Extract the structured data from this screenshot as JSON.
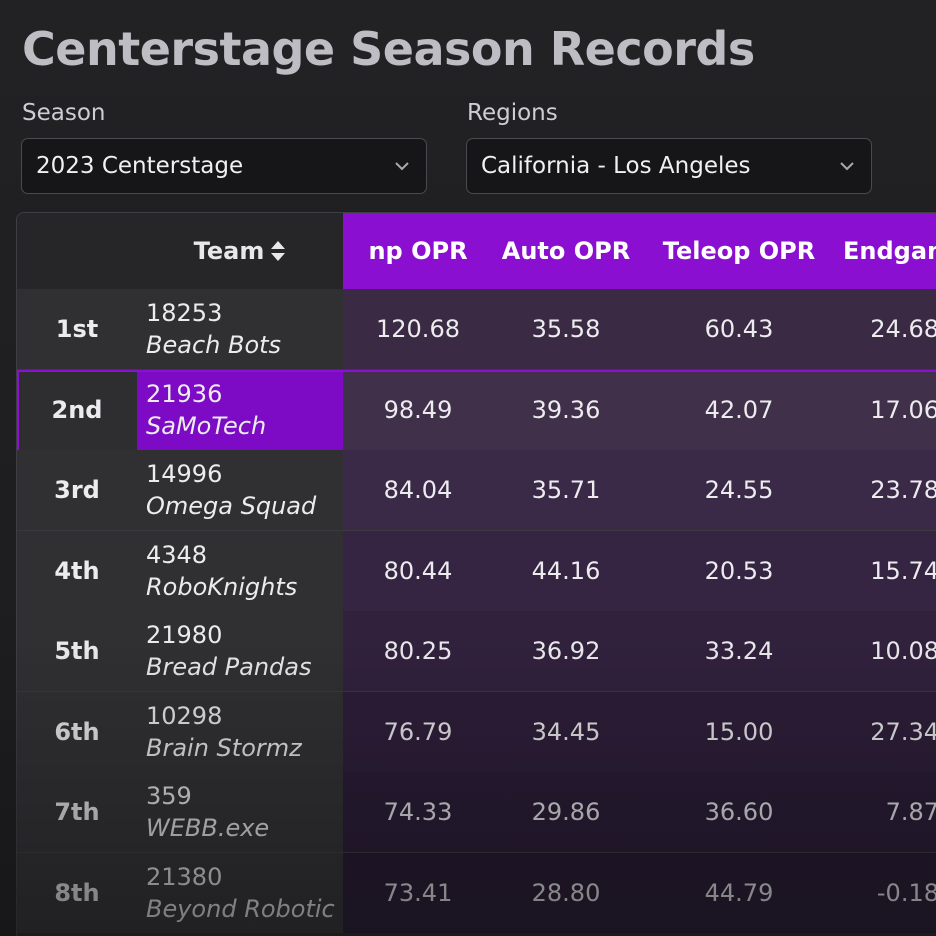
{
  "page": {
    "title": "Centerstage Season Records"
  },
  "filters": {
    "season": {
      "label": "Season",
      "value": "2023 Centerstage"
    },
    "regions": {
      "label": "Regions",
      "value": "California - Los Angeles"
    }
  },
  "table": {
    "headers": {
      "team": "Team",
      "np_opr": "np OPR",
      "auto_opr": "Auto OPR",
      "teleop_opr": "Teleop OPR",
      "endgame_opr": "Endgam"
    },
    "rows": [
      {
        "rank": "1st",
        "number": "18253",
        "name": "Beach Bots",
        "np": "120.68",
        "auto": "35.58",
        "teleop": "60.43",
        "endgame": "24.68"
      },
      {
        "rank": "2nd",
        "number": "21936",
        "name": "SaMoTech",
        "np": "98.49",
        "auto": "39.36",
        "teleop": "42.07",
        "endgame": "17.06"
      },
      {
        "rank": "3rd",
        "number": "14996",
        "name": "Omega Squad",
        "np": "84.04",
        "auto": "35.71",
        "teleop": "24.55",
        "endgame": "23.78"
      },
      {
        "rank": "4th",
        "number": "4348",
        "name": "RoboKnights",
        "np": "80.44",
        "auto": "44.16",
        "teleop": "20.53",
        "endgame": "15.74"
      },
      {
        "rank": "5th",
        "number": "21980",
        "name": "Bread Pandas",
        "np": "80.25",
        "auto": "36.92",
        "teleop": "33.24",
        "endgame": "10.08"
      },
      {
        "rank": "6th",
        "number": "10298",
        "name": "Brain Stormz",
        "np": "76.79",
        "auto": "34.45",
        "teleop": "15.00",
        "endgame": "27.34"
      },
      {
        "rank": "7th",
        "number": "359",
        "name": "WEBB.exe",
        "np": "74.33",
        "auto": "29.86",
        "teleop": "36.60",
        "endgame": "7.87"
      },
      {
        "rank": "8th",
        "number": "21380",
        "name": "Beyond Robotic",
        "np": "73.41",
        "auto": "28.80",
        "teleop": "44.79",
        "endgame": "-0.18"
      }
    ]
  },
  "colors": {
    "accent": "#8a0fd0",
    "highlight": "#7d0bc5"
  },
  "icons": {
    "dropdown": "chevron-down-icon",
    "sort": "sort-icon"
  }
}
